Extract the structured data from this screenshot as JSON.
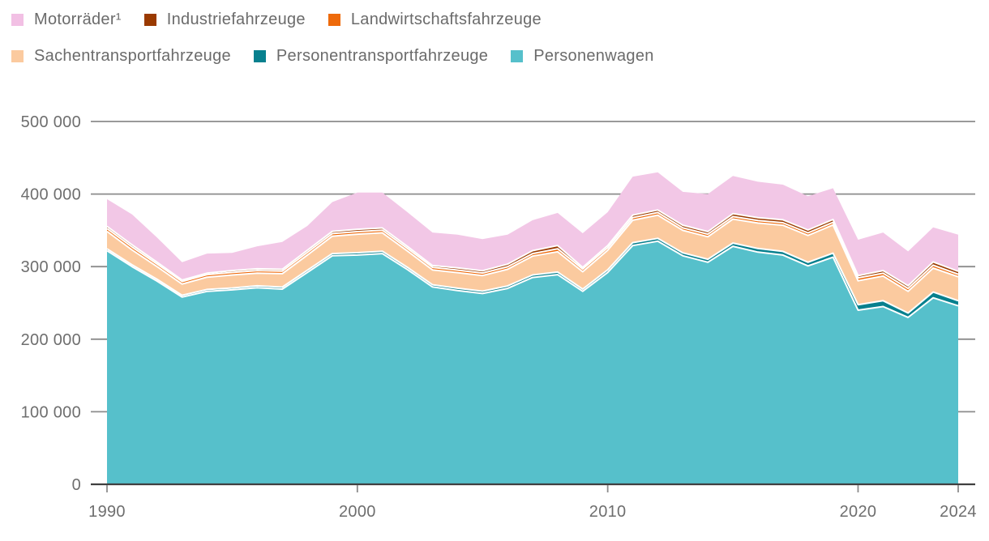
{
  "figure": {
    "background": "#ffffff",
    "text_color": "#6b6b6b",
    "grid_color": "#8c8c8c",
    "zero_axis_color": "#3f3f3f",
    "separator_color": "#ffffff"
  },
  "legend": {
    "rows": [
      {
        "items": [
          {
            "label": "Motorräder¹",
            "color": "#f2c0e4"
          },
          {
            "label": "Industriefahrzeuge",
            "color": "#9a3a00"
          },
          {
            "label": "Landwirtschaftsfahrzeuge",
            "color": "#ee6a0b"
          }
        ]
      },
      {
        "items": [
          {
            "label": "Sachentransportfahrzeuge",
            "color": "#fbca9f"
          },
          {
            "label": "Personentransportfahrzeuge",
            "color": "#07808e"
          },
          {
            "label": "Personenwagen",
            "color": "#56c0cb"
          }
        ]
      }
    ]
  },
  "chart_data": {
    "type": "area",
    "stacked": true,
    "title": "",
    "xlabel": "",
    "ylabel": "",
    "grid": "horizontal",
    "legend_position": "top-left",
    "x": [
      1990,
      1991,
      1992,
      1993,
      1994,
      1995,
      1996,
      1997,
      1998,
      1999,
      2000,
      2001,
      2002,
      2003,
      2004,
      2005,
      2006,
      2007,
      2008,
      2009,
      2010,
      2011,
      2012,
      2013,
      2014,
      2015,
      2016,
      2017,
      2018,
      2019,
      2020,
      2021,
      2022,
      2023,
      2024
    ],
    "series": [
      {
        "name": "Personenwagen",
        "color": "#56c0cb",
        "values": [
          322000,
          300000,
          280000,
          258000,
          266000,
          268000,
          271000,
          269000,
          292000,
          315000,
          316000,
          318000,
          296000,
          272000,
          267000,
          263000,
          270000,
          285000,
          289000,
          266000,
          292000,
          329000,
          335000,
          315000,
          306000,
          328000,
          320000,
          316000,
          301000,
          313000,
          240000,
          245000,
          230000,
          257000,
          246000
        ]
      },
      {
        "name": "Personentransportfahrzeuge",
        "color": "#07808e",
        "values": [
          2500,
          2500,
          2500,
          2500,
          2500,
          2500,
          2500,
          2800,
          3000,
          3000,
          3200,
          3200,
          3000,
          3000,
          3200,
          3200,
          3300,
          3500,
          3500,
          3000,
          3500,
          4000,
          4000,
          4000,
          4200,
          4500,
          5000,
          5000,
          5000,
          5500,
          7500,
          8000,
          6000,
          8000,
          7000
        ]
      },
      {
        "name": "Sachentransportfahrzeuge",
        "color": "#fbca9f",
        "values": [
          24000,
          20500,
          17500,
          15500,
          17000,
          18000,
          17500,
          18500,
          21000,
          24000,
          25500,
          25500,
          22500,
          20500,
          21500,
          21500,
          23000,
          26000,
          28000,
          24000,
          27000,
          31000,
          32000,
          31000,
          31000,
          33000,
          35000,
          36000,
          37000,
          39000,
          33000,
          34000,
          30000,
          33000,
          33000
        ]
      },
      {
        "name": "Landwirtschaftsfahrzeuge",
        "color": "#ee6a0b",
        "values": [
          4000,
          4000,
          3500,
          3500,
          3500,
          3500,
          3500,
          3500,
          3500,
          3500,
          3500,
          3500,
          3500,
          3500,
          3500,
          3500,
          3500,
          3500,
          4000,
          3500,
          3500,
          3500,
          3500,
          3500,
          3500,
          3500,
          3500,
          3500,
          3500,
          3500,
          4000,
          4000,
          4000,
          4000,
          3500
        ]
      },
      {
        "name": "Industriefahrzeuge",
        "color": "#9a3a00",
        "values": [
          3000,
          3000,
          2500,
          2000,
          2000,
          2500,
          2500,
          2500,
          3000,
          3000,
          3200,
          3000,
          2800,
          2500,
          3000,
          3000,
          3500,
          4000,
          4500,
          2500,
          3000,
          3500,
          3500,
          3500,
          3500,
          4000,
          4000,
          4000,
          4000,
          4000,
          3000,
          3500,
          3500,
          4500,
          4000
        ]
      },
      {
        "name": "Motorräder¹",
        "color": "#f2c7e6",
        "values": [
          37500,
          42000,
          34000,
          24500,
          27000,
          24500,
          31000,
          37700,
          33500,
          40500,
          50600,
          48800,
          47200,
          45500,
          45800,
          43800,
          40700,
          42000,
          45000,
          47000,
          46000,
          53000,
          52000,
          46000,
          51800,
          52000,
          49500,
          48500,
          46500,
          43000,
          49500,
          52500,
          47500,
          47500,
          50500
        ]
      }
    ],
    "ylim": [
      0,
      500000
    ],
    "yticks": [
      0,
      100000,
      200000,
      300000,
      400000,
      500000
    ],
    "ytick_labels": [
      "0",
      "100 000",
      "200 000",
      "300 000",
      "400 000",
      "500 000"
    ],
    "xticks": [
      1990,
      2000,
      2010,
      2020,
      2024
    ],
    "xtick_labels": [
      "1990",
      "2000",
      "2010",
      "2020",
      "2024"
    ]
  }
}
